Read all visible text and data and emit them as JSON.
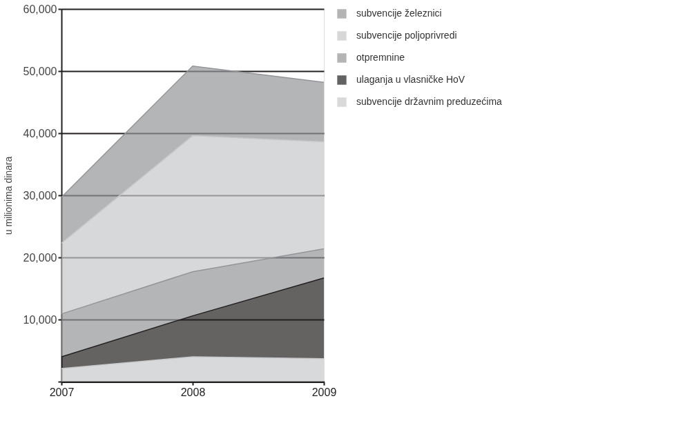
{
  "chart_data": {
    "type": "area",
    "stacked": true,
    "ylabel": "u milionima dinara",
    "categories": [
      "2007",
      "2008",
      "2009"
    ],
    "series": [
      {
        "name": "subvencije državnim preduzećima",
        "color": "#c8c9cb",
        "values": [
          2100,
          4000,
          3700
        ]
      },
      {
        "name": "ulaganja u vlasničke HoV",
        "color": "#231f20",
        "values": [
          1900,
          6600,
          13000
        ]
      },
      {
        "name": "otpremnine",
        "color": "#939598",
        "values": [
          6900,
          7100,
          4700
        ]
      },
      {
        "name": "subvencije poljoprivredi",
        "color": "#c6c7c9",
        "values": [
          11400,
          21900,
          17200
        ]
      },
      {
        "name": "subvencije železnici",
        "color": "#939598",
        "values": [
          7400,
          11200,
          9600
        ]
      }
    ],
    "ylim": [
      0,
      60000
    ],
    "yticks": [
      {
        "value": 0,
        "label": null
      },
      {
        "value": 10000,
        "label": "10,000"
      },
      {
        "value": 20000,
        "label": "20,000"
      },
      {
        "value": 30000,
        "label": "30,000"
      },
      {
        "value": 40000,
        "label": "40,000"
      },
      {
        "value": 50000,
        "label": "50,000"
      },
      {
        "value": 60000,
        "label": "60,000"
      }
    ],
    "grid": "y",
    "legend": "right"
  }
}
